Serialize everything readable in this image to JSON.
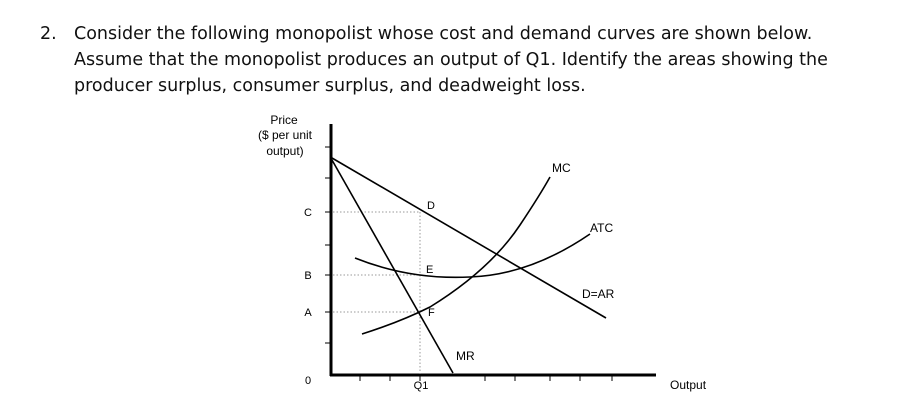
{
  "question": {
    "number": "2.",
    "lines": [
      "Consider the following monopolist whose cost and demand curves are shown below.",
      "Assume that the monopolist produces an output of Q1. Identify the areas showing the",
      "producer surplus, consumer surplus, and deadweight loss."
    ]
  },
  "diagram": {
    "y_axis_label": [
      "Price",
      "($ per unit",
      "output)"
    ],
    "x_axis_label": "Output",
    "price_labels": [
      "C",
      "B",
      "A",
      "0"
    ],
    "quantity_label": "Q1",
    "point_labels": [
      "D",
      "E",
      "F"
    ],
    "curve_labels": [
      "MR",
      "MC",
      "ATC",
      "D=AR"
    ]
  }
}
